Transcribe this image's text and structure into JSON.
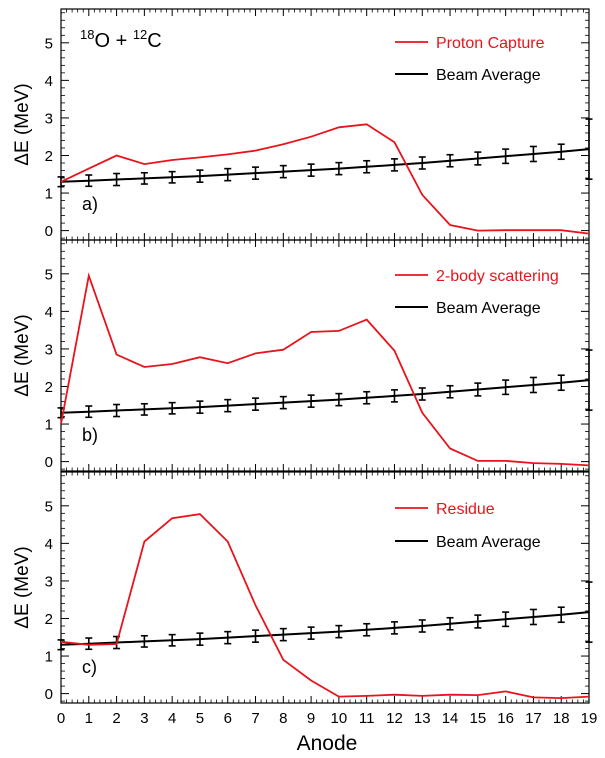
{
  "figure": {
    "reaction": {
      "a": "18",
      "b": "O + ",
      "c": "12",
      "d": "C"
    },
    "xlabel": "Anode",
    "ylabel": "ΔE (MeV)"
  },
  "colors": {
    "red": "#e8141b",
    "black": "#000000"
  },
  "chart_data": [
    {
      "type": "line",
      "panel_label": "a)",
      "xlim": [
        0,
        19
      ],
      "ylim": [
        -0.25,
        5.9
      ],
      "x": [
        0,
        1,
        2,
        3,
        4,
        5,
        6,
        7,
        8,
        9,
        10,
        11,
        12,
        13,
        14,
        15,
        16,
        17,
        18,
        19
      ],
      "xticks": [
        0,
        1,
        2,
        3,
        4,
        5,
        6,
        7,
        8,
        9,
        10,
        11,
        12,
        13,
        14,
        15,
        16,
        17,
        18,
        19
      ],
      "yticks": [
        0,
        1,
        2,
        3,
        4,
        5
      ],
      "series": [
        {
          "name": "Proton Capture",
          "color": "#e8141b",
          "values": [
            1.3,
            1.65,
            2.0,
            1.77,
            1.88,
            1.95,
            2.03,
            2.13,
            2.3,
            2.5,
            2.75,
            2.83,
            2.35,
            0.95,
            0.15,
            0.0,
            0.01,
            0.01,
            0.01,
            -0.08
          ]
        },
        {
          "name": "Beam Average",
          "color": "#000000",
          "values": [
            1.3,
            1.33,
            1.36,
            1.39,
            1.42,
            1.45,
            1.49,
            1.53,
            1.57,
            1.61,
            1.65,
            1.7,
            1.75,
            1.8,
            1.86,
            1.92,
            1.98,
            2.04,
            2.1,
            2.17
          ],
          "errors": [
            0.13,
            0.15,
            0.16,
            0.15,
            0.15,
            0.16,
            0.16,
            0.16,
            0.16,
            0.16,
            0.16,
            0.16,
            0.16,
            0.16,
            0.16,
            0.17,
            0.19,
            0.2,
            0.2,
            0.8
          ]
        }
      ]
    },
    {
      "type": "line",
      "panel_label": "b)",
      "xlim": [
        0,
        19
      ],
      "ylim": [
        -0.25,
        5.9
      ],
      "x": [
        0,
        1,
        2,
        3,
        4,
        5,
        6,
        7,
        8,
        9,
        10,
        11,
        12,
        13,
        14,
        15,
        16,
        17,
        18,
        19
      ],
      "xticks": [
        0,
        1,
        2,
        3,
        4,
        5,
        6,
        7,
        8,
        9,
        10,
        11,
        12,
        13,
        14,
        15,
        16,
        17,
        18,
        19
      ],
      "yticks": [
        0,
        1,
        2,
        3,
        4,
        5
      ],
      "series": [
        {
          "name": "2-body scattering",
          "color": "#e8141b",
          "values": [
            1.0,
            4.95,
            2.85,
            2.52,
            2.6,
            2.78,
            2.62,
            2.88,
            2.98,
            3.45,
            3.48,
            3.78,
            2.95,
            1.3,
            0.35,
            0.02,
            0.02,
            -0.04,
            -0.06,
            -0.1
          ]
        },
        {
          "name": "Beam Average",
          "color": "#000000",
          "values": [
            1.3,
            1.33,
            1.36,
            1.39,
            1.42,
            1.45,
            1.49,
            1.53,
            1.57,
            1.61,
            1.65,
            1.7,
            1.75,
            1.8,
            1.86,
            1.92,
            1.98,
            2.04,
            2.1,
            2.17
          ],
          "errors": [
            0.13,
            0.15,
            0.16,
            0.15,
            0.15,
            0.16,
            0.16,
            0.16,
            0.16,
            0.16,
            0.16,
            0.16,
            0.16,
            0.16,
            0.16,
            0.17,
            0.19,
            0.2,
            0.2,
            0.8
          ]
        }
      ]
    },
    {
      "type": "line",
      "panel_label": "c)",
      "xlim": [
        0,
        19
      ],
      "ylim": [
        -0.25,
        5.9
      ],
      "x": [
        0,
        1,
        2,
        3,
        4,
        5,
        6,
        7,
        8,
        9,
        10,
        11,
        12,
        13,
        14,
        15,
        16,
        17,
        18,
        19
      ],
      "xticks": [
        0,
        1,
        2,
        3,
        4,
        5,
        6,
        7,
        8,
        9,
        10,
        11,
        12,
        13,
        14,
        15,
        16,
        17,
        18,
        19
      ],
      "yticks": [
        0,
        1,
        2,
        3,
        4,
        5
      ],
      "series": [
        {
          "name": "Residue",
          "color": "#e8141b",
          "values": [
            1.38,
            1.3,
            1.32,
            4.05,
            4.67,
            4.78,
            4.05,
            2.35,
            0.9,
            0.35,
            -0.08,
            -0.06,
            -0.03,
            -0.06,
            -0.03,
            -0.04,
            0.06,
            -0.1,
            -0.12,
            -0.08
          ]
        },
        {
          "name": "Beam Average",
          "color": "#000000",
          "values": [
            1.3,
            1.33,
            1.36,
            1.39,
            1.42,
            1.45,
            1.49,
            1.53,
            1.57,
            1.61,
            1.65,
            1.7,
            1.75,
            1.8,
            1.86,
            1.92,
            1.98,
            2.04,
            2.1,
            2.17
          ],
          "errors": [
            0.13,
            0.15,
            0.16,
            0.15,
            0.15,
            0.16,
            0.16,
            0.16,
            0.16,
            0.16,
            0.16,
            0.16,
            0.16,
            0.16,
            0.16,
            0.17,
            0.19,
            0.2,
            0.2,
            0.8
          ]
        }
      ]
    }
  ]
}
